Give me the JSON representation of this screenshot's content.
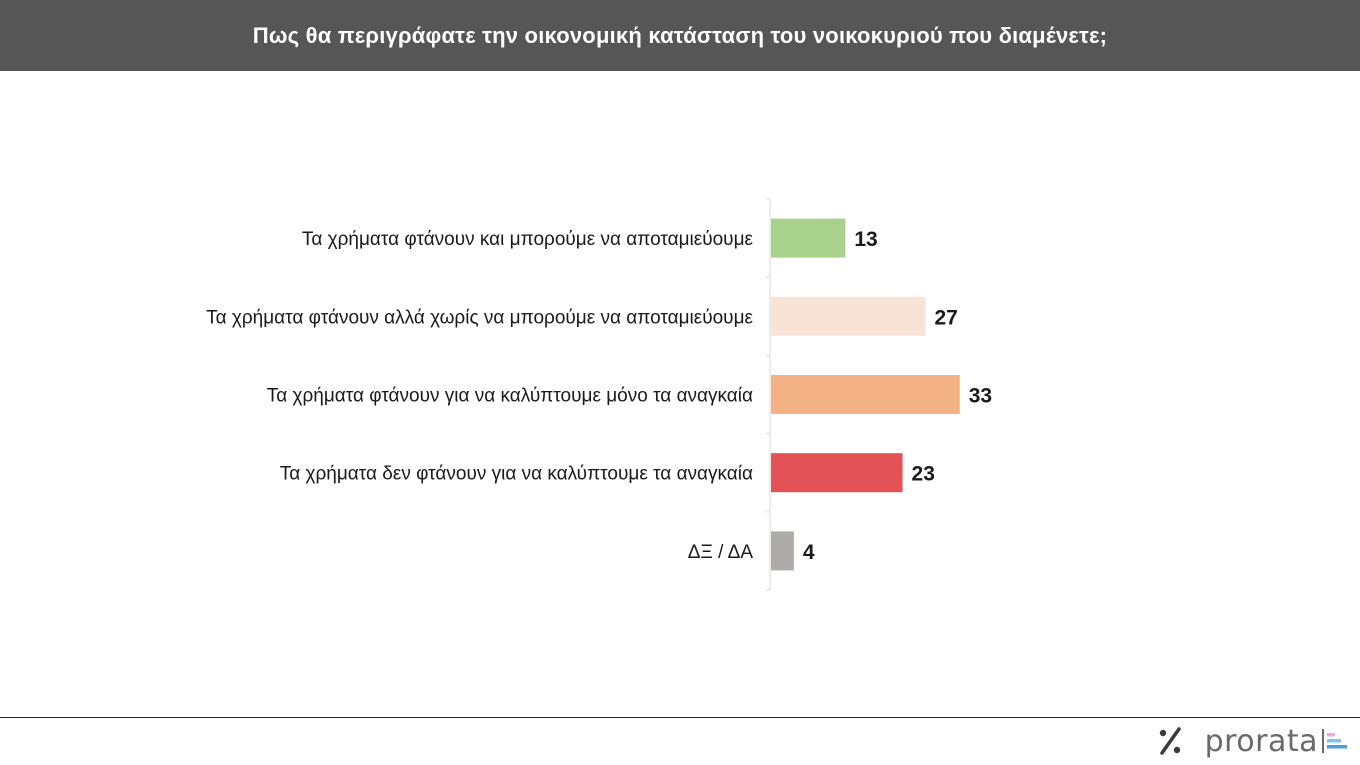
{
  "header": {
    "title": "Πως θα περιγράφατε την οικονομική κατάσταση του νοικοκυριού που διαμένετε;"
  },
  "chart_data": {
    "type": "bar",
    "orientation": "horizontal",
    "title": "Πως θα περιγράφατε την οικονομική κατάσταση του νοικοκυριού που διαμένετε;",
    "categories": [
      "Τα χρήματα φτάνουν και μπορούμε να αποταμιεύουμε",
      "Τα χρήματα φτάνουν αλλά χωρίς να μπορούμε να αποταμιεύουμε",
      "Τα χρήματα φτάνουν για να καλύπτουμε μόνο τα αναγκαία",
      "Τα χρήματα δεν φτάνουν για να καλύπτουμε τα αναγκαία",
      "ΔΞ / ΔΑ"
    ],
    "values": [
      13,
      27,
      33,
      23,
      4
    ],
    "colors": [
      "#a9d18e",
      "#f8e3d6",
      "#f4b183",
      "#e35256",
      "#afabab"
    ],
    "data_labels": [
      "13",
      "27",
      "33",
      "23",
      "4"
    ],
    "xlim": [
      0,
      40
    ],
    "grid": false,
    "legend": "none"
  },
  "footer": {
    "brand": "prorata",
    "icon": "percent-icon",
    "mark_colors": [
      "#f2a7d8",
      "#7fc4e8",
      "#4a9fd8"
    ]
  }
}
